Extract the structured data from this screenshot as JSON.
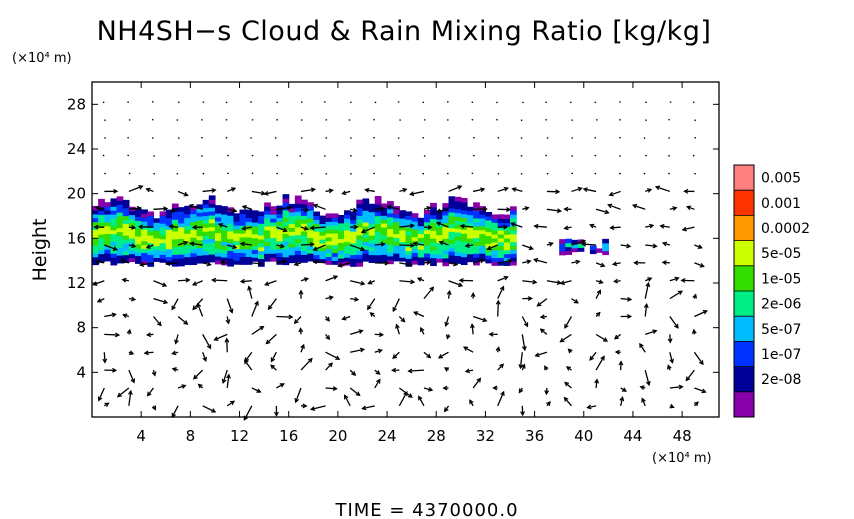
{
  "chart_data": {
    "type": "heatmap",
    "title": "NH4SH−s Cloud & Rain Mixing Ratio [kg/kg]",
    "ylabel": "Height",
    "xunit": "(×10⁴ m)",
    "yunit": "(×10⁴ m)",
    "xlim": [
      0,
      51
    ],
    "ylim": [
      0,
      30
    ],
    "xticks": [
      4,
      8,
      12,
      16,
      20,
      24,
      28,
      32,
      36,
      40,
      44,
      48
    ],
    "yticks": [
      4,
      8,
      12,
      16,
      20,
      24,
      28
    ],
    "colorbar": {
      "labels": [
        "0.005",
        "0.001",
        "0.0002",
        "5e-05",
        "1e-05",
        "2e-06",
        "5e-07",
        "1e-07",
        "2e-08"
      ],
      "colors": [
        "#ff7f7f",
        "#ff3300",
        "#ff9900",
        "#ccff00",
        "#33dd00",
        "#00ee88",
        "#00bbff",
        "#0033ff",
        "#000099",
        "#8800aa"
      ]
    },
    "cloud_layer": {
      "x_range": [
        0,
        36
      ],
      "height_range": [
        13.5,
        19.5
      ],
      "isolated_patch": {
        "x_range": [
          38,
          42
        ],
        "height_range": [
          14.5,
          16.5
        ]
      }
    },
    "wind_vectors": "shown"
  },
  "footer": {
    "time_label": "TIME  =  4370000.0"
  }
}
